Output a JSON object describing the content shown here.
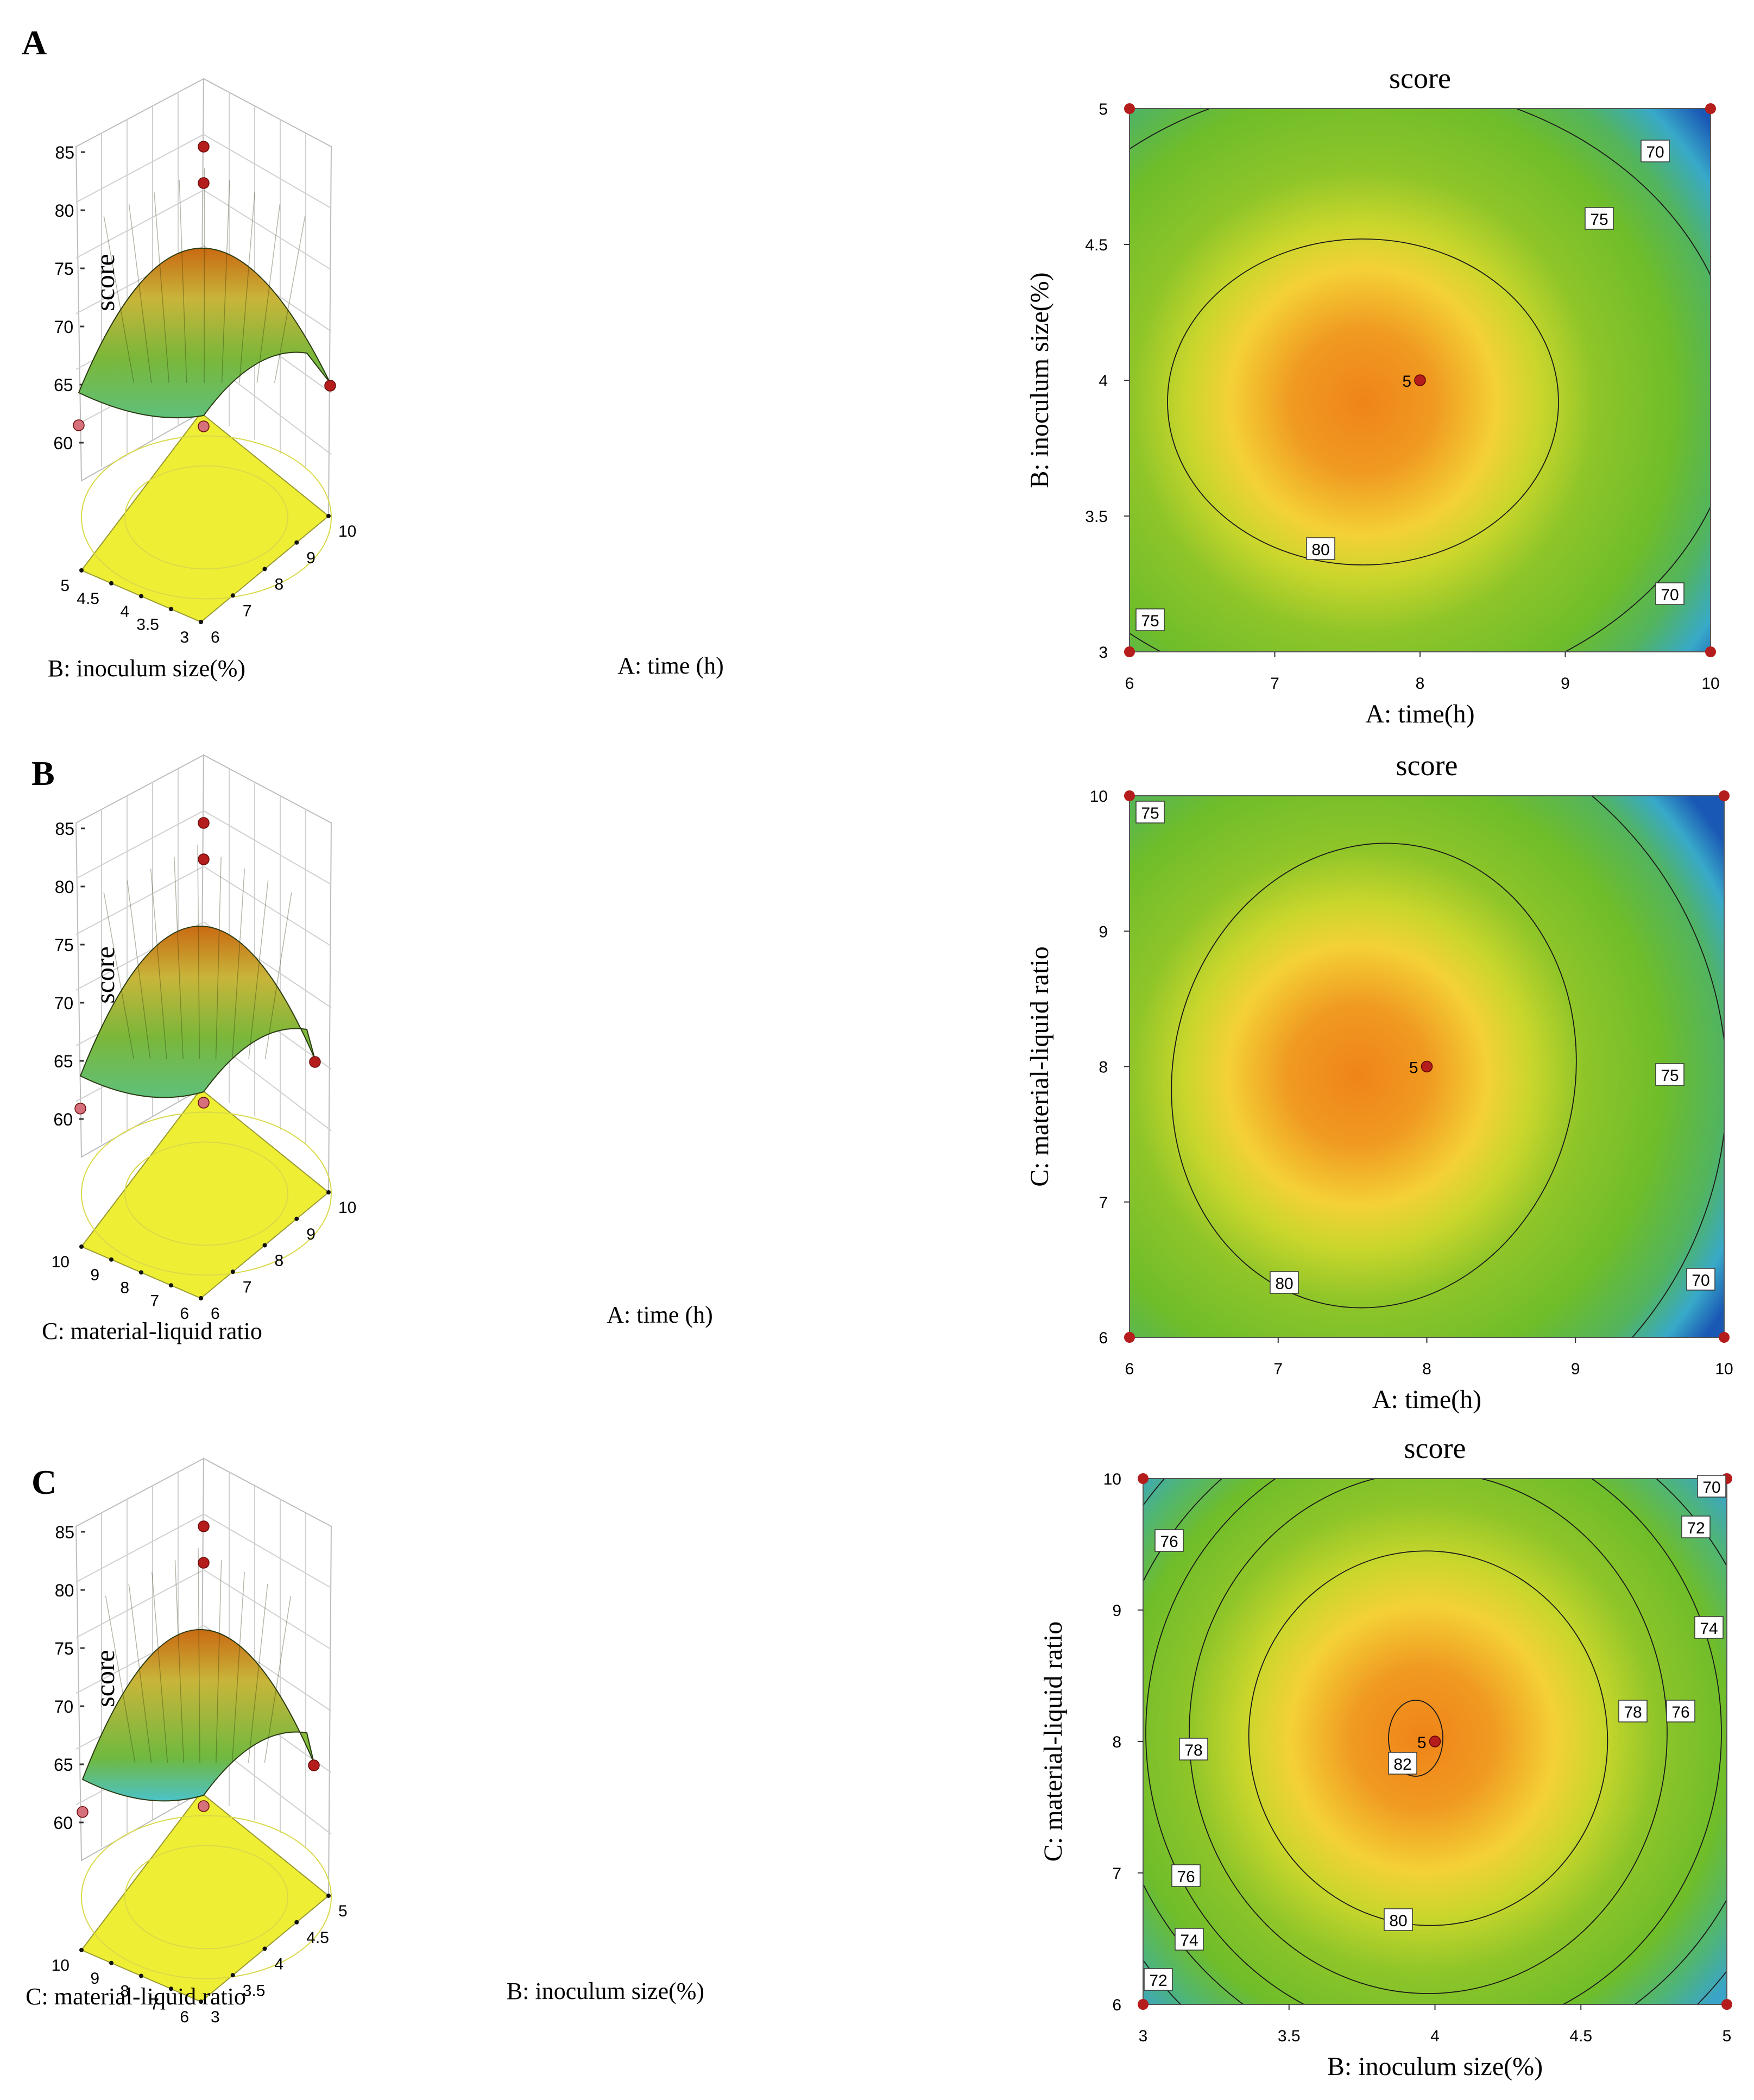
{
  "panel_letters": [
    "A",
    "B",
    "C"
  ],
  "chart_data": [
    {
      "panel": "A",
      "type": "surface3d",
      "zlabel": "score",
      "zticks": [
        60,
        65,
        70,
        75,
        80,
        85
      ],
      "xlabel": "A: time (h)",
      "xticks": [
        6,
        7,
        8,
        9,
        10
      ],
      "ylabel": "B: inoculum size(%)",
      "yticks": [
        "3",
        "3.5",
        "4",
        "4.5",
        "5"
      ],
      "zlim": [
        60,
        85
      ],
      "colors": [
        "#5fc07a",
        "#7ab73a",
        "#c8b53a",
        "#c96a12"
      ]
    },
    {
      "panel": "A",
      "type": "contour",
      "title": "score",
      "xlabel": "A: time(h)",
      "ylabel": "B: inoculum size(%)",
      "xticks": [
        "6",
        "7",
        "8",
        "9",
        "10"
      ],
      "yticks": [
        "3",
        "3.5",
        "4",
        "4.5",
        "5"
      ],
      "xlim": [
        6,
        10
      ],
      "ylim": [
        3,
        5
      ],
      "contour_labels": [
        "80",
        "75",
        "75",
        "70",
        "70"
      ],
      "center_label": "5",
      "center": [
        8,
        4
      ],
      "optimum": [
        7.5,
        3.9
      ]
    },
    {
      "panel": "B",
      "type": "surface3d",
      "zlabel": "score",
      "zticks": [
        60,
        65,
        70,
        75,
        80,
        85
      ],
      "xlabel": "A: time (h)",
      "xticks": [
        6,
        7,
        8,
        9,
        10
      ],
      "ylabel": "C: material-liquid ratio",
      "yticks": [
        "6",
        "7",
        "8",
        "9",
        "10"
      ],
      "zlim": [
        60,
        85
      ],
      "colors": [
        "#5fc07a",
        "#7ab73a",
        "#c8b53a",
        "#c96a12"
      ]
    },
    {
      "panel": "B",
      "type": "contour",
      "title": "score",
      "xlabel": "A: time(h)",
      "ylabel": "C: material-liquid ratio",
      "xticks": [
        "6",
        "7",
        "8",
        "9",
        "10"
      ],
      "yticks": [
        "6",
        "7",
        "8",
        "9",
        "10"
      ],
      "xlim": [
        6,
        10
      ],
      "ylim": [
        6,
        10
      ],
      "contour_labels": [
        "80",
        "75",
        "75",
        "70"
      ],
      "center_label": "5",
      "center": [
        8,
        8
      ],
      "optimum": [
        7.5,
        7.8
      ]
    },
    {
      "panel": "C",
      "type": "surface3d",
      "zlabel": "score",
      "zticks": [
        60,
        65,
        70,
        75,
        80,
        85
      ],
      "xlabel": "B: inoculum size(%)",
      "xticks": [
        "3",
        "3.5",
        "4",
        "4.5",
        "5"
      ],
      "ylabel": "C: material-liquid ratio",
      "yticks": [
        "6",
        "7",
        "8",
        "9",
        "10"
      ],
      "zlim": [
        60,
        85
      ],
      "colors": [
        "#5fc07a",
        "#7ab73a",
        "#c8b53a",
        "#c96a12"
      ]
    },
    {
      "panel": "C",
      "type": "contour",
      "title": "score",
      "xlabel": "B: inoculum size(%)",
      "ylabel": "C: material-liquid ratio",
      "xticks": [
        "3",
        "3.5",
        "4",
        "4.5",
        "5"
      ],
      "yticks": [
        "6",
        "7",
        "8",
        "9",
        "10"
      ],
      "xlim": [
        3,
        5
      ],
      "ylim": [
        6,
        10
      ],
      "contour_labels": [
        "82",
        "80",
        "78",
        "78",
        "76",
        "76",
        "76",
        "74",
        "74",
        "72",
        "72",
        "70"
      ],
      "center_label": "5",
      "center": [
        4,
        8
      ],
      "optimum": [
        3.95,
        8.0
      ]
    }
  ]
}
